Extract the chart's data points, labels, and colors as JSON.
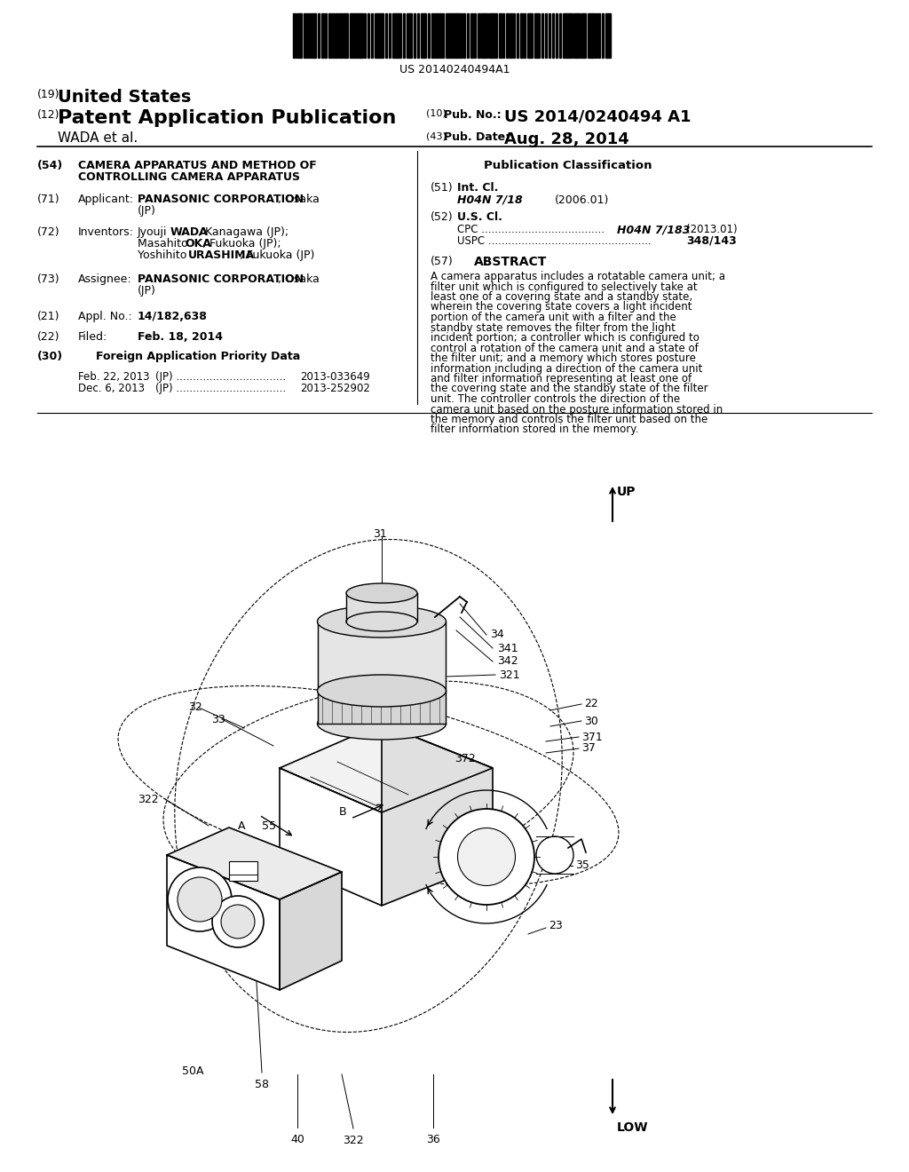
{
  "bg_color": "#ffffff",
  "barcode_text": "US 20140240494A1",
  "abstract": "A camera apparatus includes a rotatable camera unit; a filter unit which is configured to selectively take at least one of a covering state and a standby state, wherein the covering state covers a light incident portion of the camera unit with a filter and the standby state removes the filter from the light incident portion; a controller which is configured to control a rotation of the camera unit and a state of the filter unit; and a memory which stores posture information including a direction of the camera unit and filter information representing at least one of the covering state and the standby state of the filter unit. The controller controls the direction of the camera unit based on the posture information stored in the memory and controls the filter unit based on the filter information stored in the memory."
}
